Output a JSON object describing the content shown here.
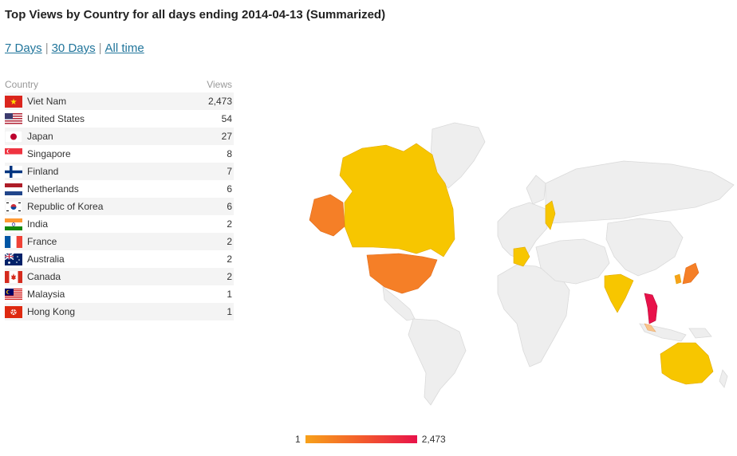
{
  "title": "Top Views by Country for all days ending 2014-04-13 (Summarized)",
  "period_links": [
    {
      "label": "7 Days"
    },
    {
      "label": "30 Days"
    },
    {
      "label": "All time"
    }
  ],
  "separator": "|",
  "table": {
    "headers": {
      "country": "Country",
      "views": "Views"
    },
    "rows": [
      {
        "country": "Viet Nam",
        "views": "2,473",
        "flag": "vn-flag-icon"
      },
      {
        "country": "United States",
        "views": "54",
        "flag": "us-flag-icon"
      },
      {
        "country": "Japan",
        "views": "27",
        "flag": "jp-flag-icon"
      },
      {
        "country": "Singapore",
        "views": "8",
        "flag": "sg-flag-icon"
      },
      {
        "country": "Finland",
        "views": "7",
        "flag": "fi-flag-icon"
      },
      {
        "country": "Netherlands",
        "views": "6",
        "flag": "nl-flag-icon"
      },
      {
        "country": "Republic of Korea",
        "views": "6",
        "flag": "kr-flag-icon"
      },
      {
        "country": "India",
        "views": "2",
        "flag": "in-flag-icon"
      },
      {
        "country": "France",
        "views": "2",
        "flag": "fr-flag-icon"
      },
      {
        "country": "Australia",
        "views": "2",
        "flag": "au-flag-icon"
      },
      {
        "country": "Canada",
        "views": "2",
        "flag": "ca-flag-icon"
      },
      {
        "country": "Malaysia",
        "views": "1",
        "flag": "my-flag-icon"
      },
      {
        "country": "Hong Kong",
        "views": "1",
        "flag": "hk-flag-icon"
      }
    ]
  },
  "legend": {
    "min": "1",
    "max": "2,473"
  },
  "colors": {
    "link": "#21759b",
    "low": "#f7c600",
    "mid": "#f57f27",
    "high": "#e8124a",
    "land": "#eeeeee"
  }
}
